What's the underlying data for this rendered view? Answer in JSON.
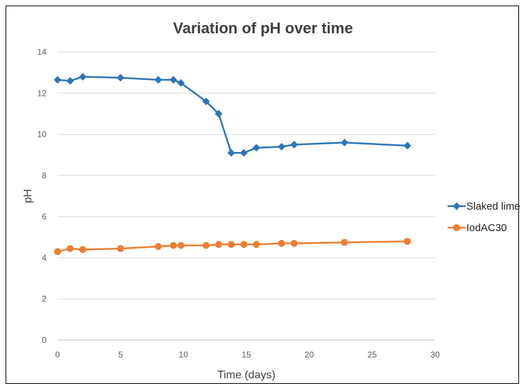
{
  "chart_data": {
    "type": "line",
    "title": "Variation of pH over time",
    "xlabel": "Time (days)",
    "ylabel": "pH",
    "xlim": [
      0,
      30
    ],
    "ylim": [
      0,
      14
    ],
    "xticks": [
      0,
      5,
      10,
      15,
      20,
      25,
      30
    ],
    "yticks": [
      0,
      2,
      4,
      6,
      8,
      10,
      12,
      14
    ],
    "grid": "horizontal",
    "legend_position": "right",
    "series": [
      {
        "name": "Slaked lime",
        "color": "#2E75B6",
        "marker": "diamond",
        "x": [
          0,
          1,
          2,
          5,
          8,
          9.2,
          9.8,
          11.8,
          12.8,
          13.8,
          14.8,
          15.8,
          17.8,
          18.8,
          22.8,
          27.8
        ],
        "y": [
          12.65,
          12.6,
          12.8,
          12.75,
          12.65,
          12.65,
          12.5,
          11.6,
          11.0,
          9.1,
          9.1,
          9.35,
          9.4,
          9.5,
          9.6,
          9.45
        ]
      },
      {
        "name": "IodAC30",
        "color": "#ED7D31",
        "marker": "circle",
        "x": [
          0,
          1,
          2,
          5,
          8,
          9.2,
          9.8,
          11.8,
          12.8,
          13.8,
          14.8,
          15.8,
          17.8,
          18.8,
          22.8,
          27.8
        ],
        "y": [
          4.3,
          4.45,
          4.4,
          4.45,
          4.55,
          4.6,
          4.6,
          4.6,
          4.65,
          4.65,
          4.65,
          4.65,
          4.7,
          4.7,
          4.75,
          4.8
        ]
      }
    ]
  }
}
